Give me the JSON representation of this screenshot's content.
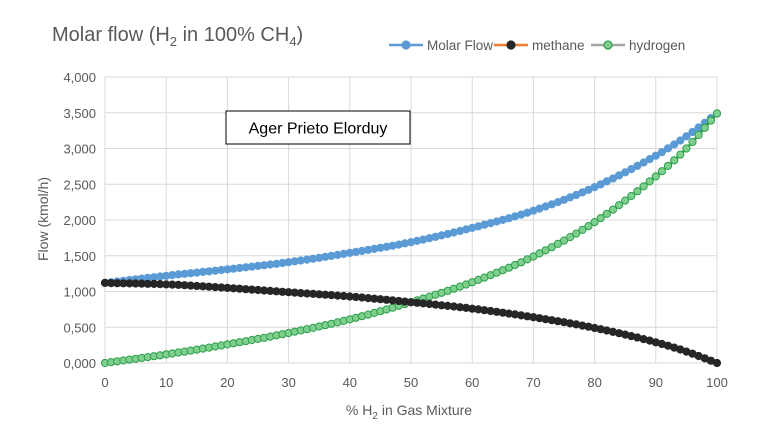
{
  "chart_data": {
    "type": "line",
    "title": {
      "main": "Molar flow (H",
      "sub1": "2",
      "mid": " in 100% CH",
      "sub2": "4",
      "end": ")"
    },
    "annotation": "Ager Prieto Elorduy",
    "xlabel": {
      "main": "% H",
      "sub": "2",
      "end": " in Gas Mixture"
    },
    "ylabel": "Flow (kmol/h)",
    "xlim": [
      0,
      100
    ],
    "ylim": [
      0,
      4
    ],
    "x_ticks": [
      0,
      10,
      20,
      30,
      40,
      50,
      60,
      70,
      80,
      90,
      100
    ],
    "y_ticks": [
      {
        "value": 0,
        "label": "0,000"
      },
      {
        "value": 0.5,
        "label": "0,500"
      },
      {
        "value": 1,
        "label": "1,000"
      },
      {
        "value": 1.5,
        "label": "1,500"
      },
      {
        "value": 2,
        "label": "2,000"
      },
      {
        "value": 2.5,
        "label": "2,500"
      },
      {
        "value": 3,
        "label": "3,000"
      },
      {
        "value": 3.5,
        "label": "3,500"
      },
      {
        "value": 4,
        "label": "4,000"
      }
    ],
    "grid": true,
    "legend_position": "top-right",
    "series": [
      {
        "name": "Molar Flow",
        "color": "#5b9bd5",
        "marker_fill": "#5b9bd5",
        "marker_stroke": "#5b9bd5",
        "x": [
          0,
          10,
          20,
          30,
          40,
          50,
          60,
          70,
          80,
          90,
          95,
          100
        ],
        "values": [
          1.12,
          1.22,
          1.31,
          1.41,
          1.54,
          1.69,
          1.89,
          2.13,
          2.46,
          2.9,
          3.17,
          3.49
        ]
      },
      {
        "name": "methane",
        "color": "#ed7d31",
        "marker_fill": "#262626",
        "marker_stroke": "#262626",
        "x": [
          0,
          10,
          20,
          30,
          40,
          50,
          60,
          70,
          80,
          90,
          95,
          100
        ],
        "values": [
          1.12,
          1.1,
          1.05,
          0.99,
          0.93,
          0.85,
          0.76,
          0.64,
          0.49,
          0.29,
          0.16,
          0.0
        ]
      },
      {
        "name": "hydrogen",
        "color": "#a5a5a5",
        "marker_fill": "#7fcf8f",
        "marker_stroke": "#2e9e4a",
        "x": [
          0,
          10,
          20,
          30,
          40,
          50,
          60,
          70,
          80,
          90,
          95,
          100
        ],
        "values": [
          0.0,
          0.12,
          0.26,
          0.42,
          0.61,
          0.85,
          1.13,
          1.49,
          1.97,
          2.61,
          3.0,
          3.49
        ]
      }
    ]
  }
}
